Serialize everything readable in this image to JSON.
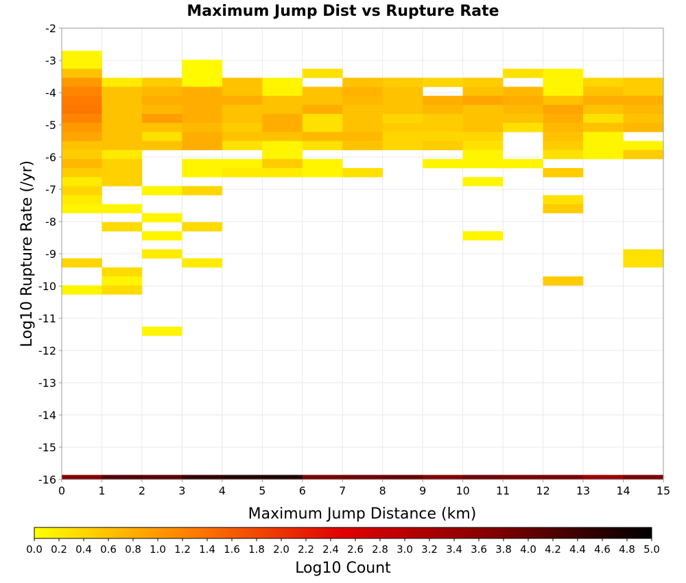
{
  "chart_data": {
    "type": "heatmap",
    "title": "Maximum Jump Dist vs Rupture Rate",
    "xlabel": "Maximum Jump Distance (km)",
    "ylabel": "Log10 Rupture Rate (/yr)",
    "xlim": [
      0,
      15
    ],
    "ylim": [
      -16,
      -2
    ],
    "x_bin_width": 1,
    "y_bin_width": 0.28,
    "x_ticks": [
      "0",
      "1",
      "2",
      "3",
      "4",
      "5",
      "6",
      "7",
      "8",
      "9",
      "10",
      "11",
      "12",
      "13",
      "14",
      "15"
    ],
    "y_ticks": [
      "-2",
      "-3",
      "-4",
      "-5",
      "-6",
      "-7",
      "-8",
      "-9",
      "-10",
      "-11",
      "-12",
      "-13",
      "-14",
      "-15",
      "-16"
    ],
    "grid": true,
    "colorbar": {
      "label": "Log10 Count",
      "range": [
        0,
        5
      ],
      "position": "bottom",
      "ticks": [
        "0.0",
        "0.2",
        "0.4",
        "0.6",
        "0.8",
        "1.0",
        "1.2",
        "1.4",
        "1.6",
        "1.8",
        "2.0",
        "2.2",
        "2.4",
        "2.6",
        "2.8",
        "3.0",
        "3.2",
        "3.4",
        "3.6",
        "3.8",
        "4.0",
        "4.2",
        "4.4",
        "4.6",
        "4.8",
        "5.0"
      ],
      "colors": [
        "#ffff00",
        "#ff8000",
        "#e00000",
        "#800000",
        "#000000"
      ]
    },
    "columns": [
      {
        "x": 0,
        "cells": [
          [
            -2.84,
            0.1
          ],
          [
            -3.12,
            0.1
          ],
          [
            -3.4,
            0.6
          ],
          [
            -3.68,
            1.0
          ],
          [
            -3.96,
            1.2
          ],
          [
            -4.24,
            1.3
          ],
          [
            -4.52,
            1.35
          ],
          [
            -4.8,
            1.2
          ],
          [
            -5.08,
            1.0
          ],
          [
            -5.36,
            0.9
          ],
          [
            -5.64,
            0.6
          ],
          [
            -5.92,
            0.5
          ],
          [
            -6.2,
            0.7
          ],
          [
            -6.48,
            0.5
          ],
          [
            -6.76,
            0.2
          ],
          [
            -7.04,
            0.4
          ],
          [
            -7.32,
            0.2
          ],
          [
            -7.6,
            0.1
          ],
          [
            -9.28,
            0.4
          ],
          [
            -10.12,
            0.1
          ],
          [
            -16.0,
            3.7
          ]
        ]
      },
      {
        "x": 1,
        "cells": [
          [
            -3.68,
            0.2
          ],
          [
            -3.96,
            0.6
          ],
          [
            -4.24,
            0.6
          ],
          [
            -4.52,
            0.6
          ],
          [
            -4.8,
            0.6
          ],
          [
            -5.08,
            0.6
          ],
          [
            -5.36,
            0.6
          ],
          [
            -5.64,
            0.6
          ],
          [
            -5.92,
            0.2
          ],
          [
            -6.2,
            0.45
          ],
          [
            -6.48,
            0.45
          ],
          [
            -6.76,
            0.45
          ],
          [
            -7.6,
            0.1
          ],
          [
            -8.16,
            0.35
          ],
          [
            -9.56,
            0.35
          ],
          [
            -9.84,
            0.1
          ],
          [
            -10.12,
            0.35
          ],
          [
            -16.0,
            4.2
          ]
        ]
      },
      {
        "x": 2,
        "cells": [
          [
            -3.68,
            0.5
          ],
          [
            -3.96,
            0.7
          ],
          [
            -4.24,
            0.8
          ],
          [
            -4.52,
            0.7
          ],
          [
            -4.8,
            0.95
          ],
          [
            -5.08,
            0.6
          ],
          [
            -5.36,
            0.3
          ],
          [
            -5.64,
            0.6
          ],
          [
            -7.04,
            0.1
          ],
          [
            -7.88,
            0.1
          ],
          [
            -8.44,
            0.1
          ],
          [
            -9.0,
            0.2
          ],
          [
            -11.4,
            0.1
          ],
          [
            -16.0,
            4.1
          ]
        ]
      },
      {
        "x": 3,
        "cells": [
          [
            -3.12,
            0.05
          ],
          [
            -3.4,
            0.05
          ],
          [
            -3.68,
            0.05
          ],
          [
            -3.96,
            0.8
          ],
          [
            -4.24,
            0.8
          ],
          [
            -4.52,
            0.8
          ],
          [
            -4.8,
            0.8
          ],
          [
            -5.08,
            0.7
          ],
          [
            -5.36,
            0.8
          ],
          [
            -5.64,
            0.8
          ],
          [
            -6.2,
            0.1
          ],
          [
            -6.48,
            0.1
          ],
          [
            -7.04,
            0.4
          ],
          [
            -8.16,
            0.35
          ],
          [
            -9.28,
            0.2
          ],
          [
            -16.0,
            4.5
          ]
        ]
      },
      {
        "x": 4,
        "cells": [
          [
            -3.68,
            0.6
          ],
          [
            -3.96,
            0.6
          ],
          [
            -4.24,
            0.8
          ],
          [
            -4.52,
            0.6
          ],
          [
            -4.8,
            0.6
          ],
          [
            -5.08,
            0.5
          ],
          [
            -5.36,
            0.6
          ],
          [
            -5.64,
            0.3
          ],
          [
            -6.2,
            0.1
          ],
          [
            -6.48,
            0.2
          ],
          [
            -16.0,
            4.6
          ]
        ]
      },
      {
        "x": 5,
        "cells": [
          [
            -3.68,
            0.1
          ],
          [
            -3.96,
            0.1
          ],
          [
            -4.24,
            0.6
          ],
          [
            -4.52,
            0.6
          ],
          [
            -4.8,
            0.8
          ],
          [
            -5.08,
            0.8
          ],
          [
            -5.36,
            0.6
          ],
          [
            -5.64,
            0.1
          ],
          [
            -5.92,
            0.1
          ],
          [
            -6.2,
            0.5
          ],
          [
            -6.48,
            0.2
          ],
          [
            -16.0,
            4.7
          ]
        ]
      },
      {
        "x": 6,
        "cells": [
          [
            -3.4,
            0.3
          ],
          [
            -3.96,
            0.6
          ],
          [
            -4.24,
            0.6
          ],
          [
            -4.52,
            0.8
          ],
          [
            -4.8,
            0.3
          ],
          [
            -5.08,
            0.3
          ],
          [
            -5.36,
            0.7
          ],
          [
            -5.64,
            0.3
          ],
          [
            -6.2,
            0.1
          ],
          [
            -6.48,
            0.1
          ],
          [
            -16.0,
            3.8
          ]
        ]
      },
      {
        "x": 7,
        "cells": [
          [
            -3.68,
            0.6
          ],
          [
            -3.96,
            0.75
          ],
          [
            -4.24,
            0.7
          ],
          [
            -4.52,
            0.6
          ],
          [
            -4.8,
            0.6
          ],
          [
            -5.08,
            0.6
          ],
          [
            -5.36,
            0.7
          ],
          [
            -5.64,
            0.6
          ],
          [
            -6.48,
            0.3
          ],
          [
            -16.0,
            3.9
          ]
        ]
      },
      {
        "x": 8,
        "cells": [
          [
            -3.68,
            0.5
          ],
          [
            -3.96,
            0.6
          ],
          [
            -4.24,
            0.6
          ],
          [
            -4.52,
            0.6
          ],
          [
            -4.8,
            0.4
          ],
          [
            -5.08,
            0.5
          ],
          [
            -5.36,
            0.4
          ],
          [
            -5.64,
            0.4
          ],
          [
            -16.0,
            4.0
          ]
        ]
      },
      {
        "x": 9,
        "cells": [
          [
            -3.68,
            0.4
          ],
          [
            -4.24,
            0.8
          ],
          [
            -4.52,
            0.7
          ],
          [
            -4.8,
            0.5
          ],
          [
            -5.08,
            0.5
          ],
          [
            -5.36,
            0.4
          ],
          [
            -5.64,
            0.5
          ],
          [
            -6.2,
            0.1
          ],
          [
            -16.0,
            3.7
          ]
        ]
      },
      {
        "x": 10,
        "cells": [
          [
            -3.68,
            0.5
          ],
          [
            -3.96,
            0.6
          ],
          [
            -4.24,
            0.9
          ],
          [
            -4.52,
            0.6
          ],
          [
            -4.8,
            0.6
          ],
          [
            -5.08,
            0.6
          ],
          [
            -5.36,
            0.4
          ],
          [
            -5.64,
            0.3
          ],
          [
            -5.92,
            0.1
          ],
          [
            -6.2,
            0.1
          ],
          [
            -6.76,
            0.1
          ],
          [
            -8.44,
            0.1
          ],
          [
            -16.0,
            3.9
          ]
        ]
      },
      {
        "x": 11,
        "cells": [
          [
            -3.4,
            0.3
          ],
          [
            -3.96,
            0.7
          ],
          [
            -4.24,
            0.8
          ],
          [
            -4.52,
            0.7
          ],
          [
            -4.8,
            0.6
          ],
          [
            -5.08,
            0.3
          ],
          [
            -6.2,
            0.1
          ],
          [
            -16.0,
            3.8
          ]
        ]
      },
      {
        "x": 12,
        "cells": [
          [
            -3.4,
            0.1
          ],
          [
            -3.68,
            0.1
          ],
          [
            -3.96,
            0.1
          ],
          [
            -4.24,
            0.6
          ],
          [
            -4.52,
            0.9
          ],
          [
            -4.8,
            0.8
          ],
          [
            -5.08,
            0.7
          ],
          [
            -5.36,
            0.6
          ],
          [
            -5.64,
            0.5
          ],
          [
            -5.92,
            0.3
          ],
          [
            -6.48,
            0.5
          ],
          [
            -7.32,
            0.3
          ],
          [
            -7.6,
            0.5
          ],
          [
            -9.84,
            0.5
          ],
          [
            -16.0,
            3.8
          ]
        ]
      },
      {
        "x": 13,
        "cells": [
          [
            -3.68,
            0.4
          ],
          [
            -3.96,
            0.6
          ],
          [
            -4.24,
            0.8
          ],
          [
            -4.52,
            0.6
          ],
          [
            -4.8,
            0.3
          ],
          [
            -5.08,
            0.6
          ],
          [
            -5.36,
            0.1
          ],
          [
            -5.64,
            0.1
          ],
          [
            -5.92,
            0.1
          ],
          [
            -16.0,
            3.4
          ]
        ]
      },
      {
        "x": 14,
        "cells": [
          [
            -3.68,
            0.5
          ],
          [
            -3.96,
            0.5
          ],
          [
            -4.24,
            0.8
          ],
          [
            -4.52,
            0.7
          ],
          [
            -4.8,
            0.6
          ],
          [
            -5.08,
            0.7
          ],
          [
            -5.64,
            0.1
          ],
          [
            -5.92,
            0.5
          ],
          [
            -9.0,
            0.3
          ],
          [
            -9.28,
            0.3
          ],
          [
            -16.0,
            3.8
          ]
        ]
      }
    ]
  }
}
